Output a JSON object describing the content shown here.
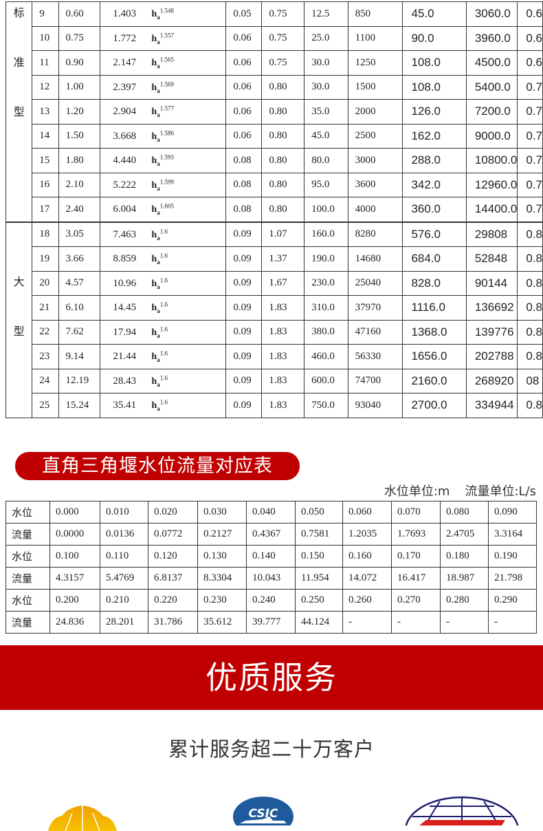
{
  "weir_table": {
    "groups": [
      {
        "label_chars": [
          "标",
          "准",
          "型"
        ]
      },
      {
        "label_chars": [
          "大",
          "型"
        ]
      }
    ],
    "rows": [
      [
        "9",
        "0.60",
        "1.403",
        "1.548",
        "0.05",
        "0.75",
        "12.5",
        "850",
        "45.0",
        "3060.0",
        "0.6"
      ],
      [
        "10",
        "0.75",
        "1.772",
        "1.557",
        "0.06",
        "0.75",
        "25.0",
        "1100",
        "90.0",
        "3960.0",
        "0.6"
      ],
      [
        "11",
        "0.90",
        "2.147",
        "1.565",
        "0.06",
        "0.75",
        "30.0",
        "1250",
        "108.0",
        "4500.0",
        "0.6"
      ],
      [
        "12",
        "1.00",
        "2.397",
        "1.569",
        "0.06",
        "0.80",
        "30.0",
        "1500",
        "108.0",
        "5400.0",
        "0.7"
      ],
      [
        "13",
        "1.20",
        "2.904",
        "1.577",
        "0.06",
        "0.80",
        "35.0",
        "2000",
        "126.0",
        "7200.0",
        "0.7"
      ],
      [
        "14",
        "1.50",
        "3.668",
        "1.586",
        "0.06",
        "0.80",
        "45.0",
        "2500",
        "162.0",
        "9000.0",
        "0.7"
      ],
      [
        "15",
        "1.80",
        "4.440",
        "1.593",
        "0.08",
        "0.80",
        "80.0",
        "3000",
        "288.0",
        "10800.0",
        "0.7"
      ],
      [
        "16",
        "2.10",
        "5.222",
        "1.599",
        "0.08",
        "0.80",
        "95.0",
        "3600",
        "342.0",
        "12960.0",
        "0.7"
      ],
      [
        "17",
        "2.40",
        "6.004",
        "1.605",
        "0.08",
        "0.80",
        "100.0",
        "4000",
        "360.0",
        "14400.0",
        "0.7"
      ],
      [
        "18",
        "3.05",
        "7.463",
        "1.6",
        "0.09",
        "1.07",
        "160.0",
        "8280",
        "576.0",
        "29808",
        "0.8"
      ],
      [
        "19",
        "3.66",
        "8.859",
        "1.6",
        "0.09",
        "1.37",
        "190.0",
        "14680",
        "684.0",
        "52848",
        "0.8"
      ],
      [
        "20",
        "4.57",
        "10.96",
        "1.6",
        "0.09",
        "1.67",
        "230.0",
        "25040",
        "828.0",
        "90144",
        "0.8"
      ],
      [
        "21",
        "6.10",
        "14.45",
        "1.6",
        "0.09",
        "1.83",
        "310.0",
        "37970",
        "1116.0",
        "136692",
        "0.8"
      ],
      [
        "22",
        "7.62",
        "17.94",
        "1.6",
        "0.09",
        "1.83",
        "380.0",
        "47160",
        "1368.0",
        "139776",
        "0.8"
      ],
      [
        "23",
        "9.14",
        "21.44",
        "1.6",
        "0.09",
        "1.83",
        "460.0",
        "56330",
        "1656.0",
        "202788",
        "0.8"
      ],
      [
        "24",
        "12.19",
        "28.43",
        "1.6",
        "0.09",
        "1.83",
        "600.0",
        "74700",
        "2160.0",
        "268920",
        "08"
      ],
      [
        "25",
        "15.24",
        "35.41",
        "1.6",
        "0.09",
        "1.83",
        "750.0",
        "93040",
        "2700.0",
        "334944",
        "0.8"
      ]
    ],
    "formula_base": "h",
    "formula_sub": "a"
  },
  "triangle_section": {
    "title": "直角三角堰水位流量对应表",
    "unit_level": "水位单位:m",
    "unit_flow": "流量单位:L/s",
    "rows": [
      [
        "水位",
        "0.000",
        "0.010",
        "0.020",
        "0.030",
        "0.040",
        "0.050",
        "0.060",
        "0.070",
        "0.080",
        "0.090"
      ],
      [
        "流量",
        "0.0000",
        "0.0136",
        "0.0772",
        "0.2127",
        "0.4367",
        "0.7581",
        "1.2035",
        "1.7693",
        "2.4705",
        "3.3164"
      ],
      [
        "水位",
        "0.100",
        "0.110",
        "0.120",
        "0.130",
        "0.140",
        "0.150",
        "0.160",
        "0.170",
        "0.180",
        "0.190"
      ],
      [
        "流量",
        "4.3157",
        "5.4769",
        "6.8137",
        "8.3304",
        "10.043",
        "11.954",
        "14.072",
        "16.417",
        "18.987",
        "21.798"
      ],
      [
        "水位",
        "0.200",
        "0.210",
        "0.220",
        "0.230",
        "0.240",
        "0.250",
        "0.260",
        "0.270",
        "0.280",
        "0.290"
      ],
      [
        "流量",
        "24.836",
        "28.201",
        "31.786",
        "35.612",
        "39.777",
        "44.124",
        "-",
        "-",
        "-",
        "-"
      ]
    ]
  },
  "service": {
    "banner": "优质服务",
    "clients_text": "累计服务超二十万客户",
    "logos": [
      {
        "name": "petrochina-logo",
        "color": "#f5a800"
      },
      {
        "name": "csic-logo",
        "text": "CSIC",
        "color": "#1f5a9c"
      },
      {
        "name": "globe-logo",
        "color": "#1a1a6e"
      }
    ]
  },
  "colors": {
    "accent": "#c00000"
  }
}
